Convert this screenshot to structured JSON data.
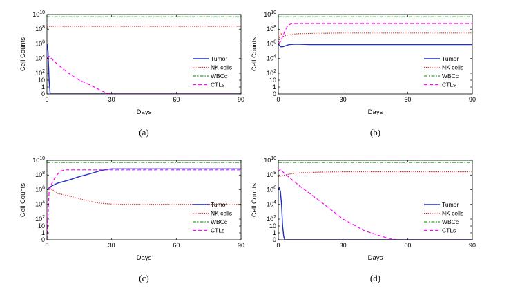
{
  "chart_data": [
    {
      "type": "line",
      "panel_label": "(a)",
      "xlabel": "Days",
      "ylabel": "Cell Counts",
      "xlim": [
        0,
        90
      ],
      "xticks": [
        "0",
        "30",
        "60",
        "90"
      ],
      "yscale": "symlog",
      "ytick_labels": [
        "0",
        "1",
        "10",
        "10^2",
        "10^4",
        "10^6",
        "10^8",
        "10^10"
      ],
      "legend_position": "lower-right",
      "series": [
        {
          "name": "Tumor",
          "color": "#1f2fbf",
          "style": "solid",
          "x": [
            0,
            0.5,
            1,
            1.5,
            2,
            90
          ],
          "y": [
            1000000,
            100000,
            10,
            0,
            0,
            0
          ]
        },
        {
          "name": "NK cells",
          "color": "#d62728",
          "style": "dotted",
          "x": [
            0,
            0.3,
            1,
            90
          ],
          "y": [
            100000000,
            200000000,
            250000000,
            250000000
          ]
        },
        {
          "name": "WBCc",
          "color": "#2ca02c",
          "style": "dashdot",
          "x": [
            0,
            90
          ],
          "y": [
            5000000000,
            5000000000
          ]
        },
        {
          "name": "CTLs",
          "color": "#ff00ff",
          "style": "dashed",
          "x": [
            0,
            1,
            5,
            10,
            15,
            20,
            25,
            28,
            30,
            90
          ],
          "y": [
            10000,
            20000,
            1500,
            100,
            10,
            2,
            0.5,
            0.1,
            0,
            0
          ]
        }
      ]
    },
    {
      "type": "line",
      "panel_label": "(b)",
      "xlabel": "Days",
      "ylabel": "Cell Counts",
      "xlim": [
        0,
        90
      ],
      "xticks": [
        "0",
        "30",
        "60",
        "90"
      ],
      "yscale": "symlog",
      "ytick_labels": [
        "0",
        "1",
        "10",
        "10^2",
        "10^4",
        "10^6",
        "10^8",
        "10^10"
      ],
      "legend_position": "lower-right",
      "series": [
        {
          "name": "Tumor",
          "color": "#1f2fbf",
          "style": "solid",
          "x": [
            0,
            1,
            2,
            3,
            5,
            8,
            15,
            30,
            90
          ],
          "y": [
            1000000,
            400000,
            400000,
            500000,
            800000,
            900000,
            800000,
            800000,
            800000
          ]
        },
        {
          "name": "NK cells",
          "color": "#d62728",
          "style": "dotted",
          "x": [
            0,
            0.5,
            1,
            2,
            4,
            6,
            10,
            30,
            90
          ],
          "y": [
            1000000,
            5000000,
            40000000,
            10000000,
            15000000,
            20000000,
            25000000,
            30000000,
            30000000
          ]
        },
        {
          "name": "WBCc",
          "color": "#2ca02c",
          "style": "dashdot",
          "x": [
            0,
            90
          ],
          "y": [
            5000000000,
            5000000000
          ]
        },
        {
          "name": "CTLs",
          "color": "#ff00ff",
          "style": "dashed",
          "x": [
            0,
            1,
            2,
            3,
            4,
            5,
            6,
            8,
            90
          ],
          "y": [
            1000000,
            2000000,
            10000000,
            50000000,
            200000000,
            400000000,
            550000000,
            600000000,
            600000000
          ]
        }
      ]
    },
    {
      "type": "line",
      "panel_label": "(c)",
      "xlabel": "Days",
      "ylabel": "Cell Counts",
      "xlim": [
        0,
        90
      ],
      "xticks": [
        "0",
        "30",
        "60",
        "90"
      ],
      "yscale": "symlog",
      "ytick_labels": [
        "0",
        "1",
        "10",
        "10^2",
        "10^4",
        "10^6",
        "10^8",
        "10^10"
      ],
      "legend_position": "lower-right",
      "series": [
        {
          "name": "Tumor",
          "color": "#1f2fbf",
          "style": "solid",
          "x": [
            0,
            2,
            5,
            10,
            15,
            20,
            25,
            28,
            30,
            35,
            90
          ],
          "y": [
            1000000,
            3000000,
            8000000,
            20000000,
            60000000,
            150000000,
            400000000,
            600000000,
            700000000,
            700000000,
            700000000
          ]
        },
        {
          "name": "NK cells",
          "color": "#d62728",
          "style": "dotted",
          "x": [
            0,
            1,
            5,
            10,
            15,
            20,
            25,
            30,
            35,
            40,
            90
          ],
          "y": [
            1000000,
            2000000,
            300000,
            150000,
            60000,
            25000,
            14000,
            11000,
            10000,
            10000,
            10000
          ]
        },
        {
          "name": "WBCc",
          "color": "#2ca02c",
          "style": "dashdot",
          "x": [
            0,
            90
          ],
          "y": [
            5000000000,
            5000000000
          ]
        },
        {
          "name": "CTLs",
          "color": "#ff00ff",
          "style": "dashed",
          "x": [
            0,
            1,
            2,
            4,
            6,
            8,
            10,
            90
          ],
          "y": [
            0,
            500000,
            5000000,
            60000000,
            300000000,
            500000000,
            500000000,
            500000000
          ]
        }
      ]
    },
    {
      "type": "line",
      "panel_label": "(d)",
      "xlabel": "Days",
      "ylabel": "Cell Counts",
      "xlim": [
        0,
        90
      ],
      "xticks": [
        "0",
        "30",
        "60",
        "90"
      ],
      "yscale": "symlog",
      "ytick_labels": [
        "0",
        "1",
        "10",
        "10^2",
        "10^4",
        "10^6",
        "10^8",
        "10^10"
      ],
      "legend_position": "lower-right",
      "series": [
        {
          "name": "Tumor",
          "color": "#1f2fbf",
          "style": "solid",
          "x": [
            0,
            0.5,
            1,
            1.5,
            2,
            2.5,
            3,
            90
          ],
          "y": [
            1000000,
            2000000,
            500000,
            10000,
            10,
            0.5,
            0,
            0
          ]
        },
        {
          "name": "NK cells",
          "color": "#d62728",
          "style": "dotted",
          "x": [
            0,
            3,
            6,
            10,
            20,
            30,
            90
          ],
          "y": [
            60000000,
            100000000,
            150000000,
            200000000,
            250000000,
            280000000,
            280000000
          ]
        },
        {
          "name": "WBCc",
          "color": "#2ca02c",
          "style": "dashdot",
          "x": [
            0,
            90
          ],
          "y": [
            5000000000,
            5000000000
          ]
        },
        {
          "name": "CTLs",
          "color": "#ff00ff",
          "style": "dashed",
          "x": [
            0,
            1,
            2,
            3,
            5,
            10,
            20,
            30,
            40,
            50,
            55,
            90
          ],
          "y": [
            300000000,
            600000000,
            300000000,
            150000000,
            50000000,
            3000000,
            20000,
            100,
            2,
            0.3,
            0,
            0
          ]
        }
      ]
    }
  ]
}
